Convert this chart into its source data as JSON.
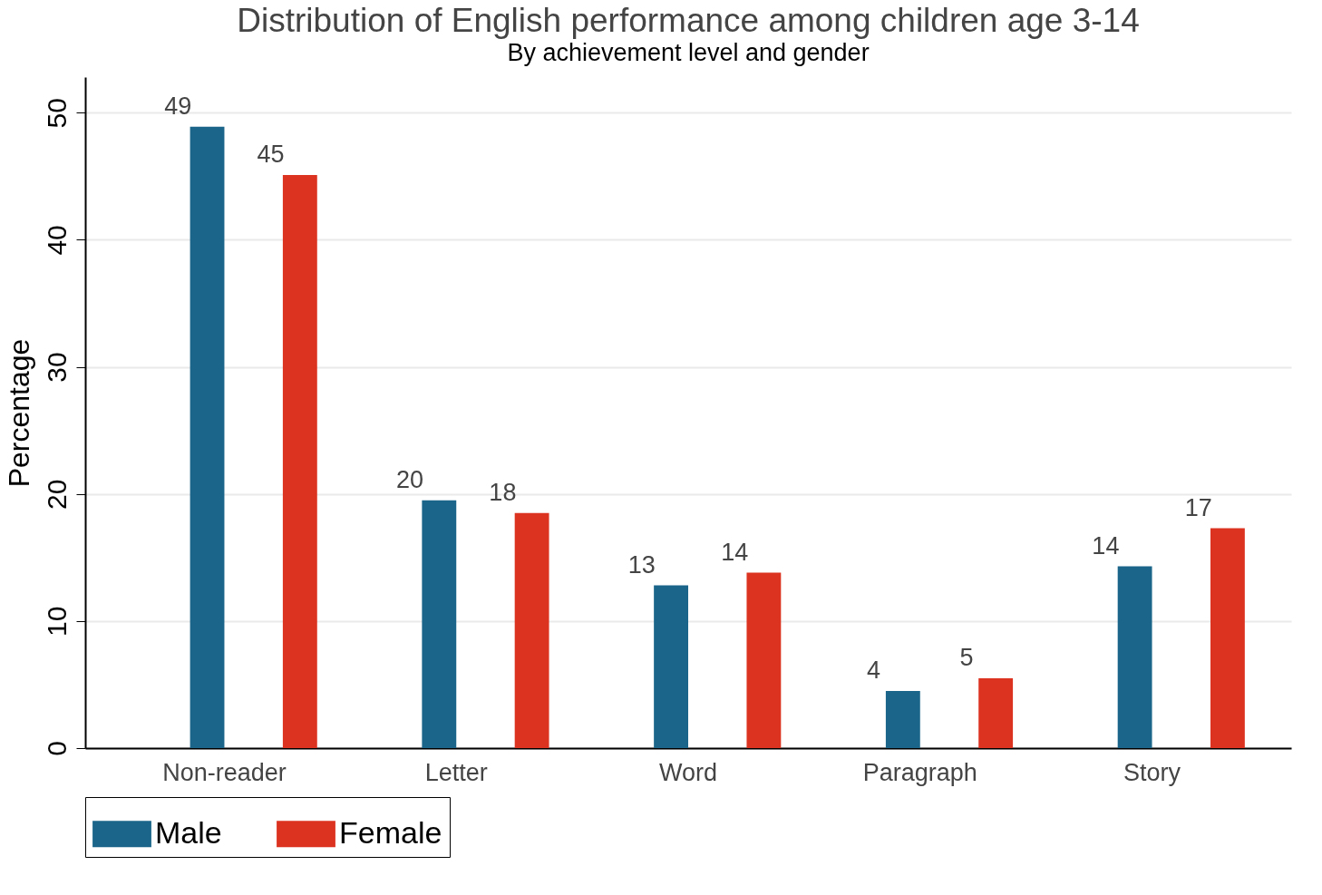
{
  "chart_data": {
    "type": "bar",
    "title": "Distribution of English performance among children age 3-14",
    "subtitle": "By achievement level and gender",
    "ylabel": "Percentage",
    "categories": [
      "Non-reader",
      "Letter",
      "Word",
      "Paragraph",
      "Story"
    ],
    "series": [
      {
        "name": "Male",
        "color": "#1a6589",
        "values": [
          48.9,
          19.5,
          12.8,
          4.5,
          14.3
        ],
        "value_labels": [
          "49",
          "20",
          "13",
          "4",
          "14"
        ]
      },
      {
        "name": "Female",
        "color": "#dc3220",
        "values": [
          45.1,
          18.5,
          13.8,
          5.5,
          17.3
        ],
        "value_labels": [
          "45",
          "18",
          "14",
          "5",
          "17"
        ]
      }
    ],
    "ylim": [
      0,
      52.8
    ],
    "yticks": [
      0,
      10,
      20,
      30,
      40,
      50
    ],
    "grid": "y",
    "legend": "bottom"
  }
}
